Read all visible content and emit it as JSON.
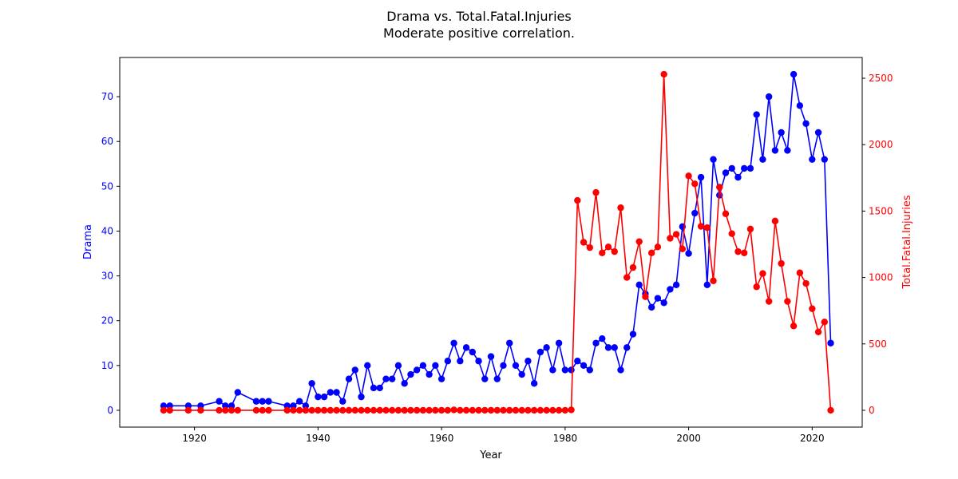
{
  "chart_data": {
    "type": "line",
    "title": "Drama vs. Total.Fatal.Injuries",
    "subtitle": "Moderate positive correlation.",
    "xlabel": "Year",
    "ylabel_left": "Drama",
    "ylabel_right": "Total.Fatal.Injuries",
    "xlim": [
      1907.9,
      2028.1
    ],
    "ylim_left": [
      -3.75,
      78.75
    ],
    "ylim_right": [
      -126.5,
      2656.5
    ],
    "xticks": [
      1920,
      1940,
      1960,
      1980,
      2000,
      2020
    ],
    "yticks_left": [
      0,
      10,
      20,
      30,
      40,
      50,
      60,
      70
    ],
    "yticks_right": [
      0,
      500,
      1000,
      1500,
      2000,
      2500
    ],
    "grid": false,
    "colors": {
      "left": "#0000ff",
      "right": "#ff0000",
      "axis": "#000000"
    },
    "series": [
      {
        "axis": "left",
        "color": "#0000ff",
        "x": [
          1915,
          1916,
          1919,
          1921,
          1924,
          1925,
          1926,
          1927,
          1930,
          1931,
          1932,
          1935,
          1936,
          1937,
          1938,
          1939,
          1940,
          1941,
          1942,
          1943,
          1944,
          1945,
          1946,
          1947,
          1948,
          1949,
          1950,
          1951,
          1952,
          1953,
          1954,
          1955,
          1956,
          1957,
          1958,
          1959,
          1960,
          1961,
          1962,
          1963,
          1964,
          1965,
          1966,
          1967,
          1968,
          1969,
          1970,
          1971,
          1972,
          1973,
          1974,
          1975,
          1976,
          1977,
          1978,
          1979,
          1980,
          1981,
          1982,
          1983,
          1984,
          1985,
          1986,
          1987,
          1988,
          1989,
          1990,
          1991,
          1992,
          1993,
          1994,
          1995,
          1996,
          1997,
          1998,
          1999,
          2000,
          2001,
          2002,
          2003,
          2004,
          2005,
          2006,
          2007,
          2008,
          2009,
          2010,
          2011,
          2012,
          2013,
          2014,
          2015,
          2016,
          2017,
          2018,
          2019,
          2020,
          2021,
          2022,
          2023
        ],
        "y": [
          1,
          1,
          1,
          1,
          2,
          1,
          1,
          4,
          2,
          2,
          2,
          1,
          1,
          2,
          1,
          6,
          3,
          3,
          4,
          4,
          2,
          7,
          9,
          3,
          10,
          5,
          5,
          7,
          7,
          10,
          6,
          8,
          9,
          10,
          8,
          10,
          7,
          11,
          15,
          11,
          14,
          13,
          11,
          7,
          12,
          7,
          10,
          15,
          10,
          8,
          11,
          6,
          13,
          14,
          9,
          15,
          9,
          9,
          11,
          10,
          9,
          15,
          16,
          14,
          14,
          9,
          14,
          17,
          28,
          26,
          23,
          25,
          24,
          27,
          28,
          41,
          35,
          44,
          52,
          28,
          56,
          48,
          53,
          54,
          52,
          54,
          54,
          66,
          56,
          70,
          58,
          62,
          58,
          75,
          68,
          64,
          56,
          62,
          56,
          15
        ]
      },
      {
        "axis": "right",
        "color": "#ff0000",
        "x": [
          1915,
          1916,
          1919,
          1921,
          1924,
          1925,
          1926,
          1927,
          1930,
          1931,
          1932,
          1935,
          1936,
          1937,
          1938,
          1939,
          1940,
          1941,
          1942,
          1943,
          1944,
          1945,
          1946,
          1947,
          1948,
          1949,
          1950,
          1951,
          1952,
          1953,
          1954,
          1955,
          1956,
          1957,
          1958,
          1959,
          1960,
          1961,
          1962,
          1963,
          1964,
          1965,
          1966,
          1967,
          1968,
          1969,
          1970,
          1971,
          1972,
          1973,
          1974,
          1975,
          1976,
          1977,
          1978,
          1979,
          1980,
          1981,
          1982,
          1983,
          1984,
          1985,
          1986,
          1987,
          1988,
          1989,
          1990,
          1991,
          1992,
          1993,
          1994,
          1995,
          1996,
          1997,
          1998,
          1999,
          2000,
          2001,
          2002,
          2003,
          2004,
          2005,
          2006,
          2007,
          2008,
          2009,
          2010,
          2011,
          2012,
          2013,
          2014,
          2015,
          2016,
          2017,
          2018,
          2019,
          2020,
          2021,
          2022,
          2023
        ],
        "y": [
          0,
          0,
          0,
          0,
          0,
          0,
          0,
          0,
          0,
          0,
          0,
          0,
          0,
          0,
          0,
          0,
          0,
          0,
          0,
          0,
          0,
          0,
          0,
          0,
          0,
          0,
          0,
          0,
          0,
          0,
          0,
          0,
          0,
          0,
          0,
          0,
          0,
          0,
          3,
          0,
          0,
          0,
          0,
          0,
          0,
          0,
          0,
          0,
          0,
          0,
          0,
          0,
          0,
          0,
          0,
          0,
          0,
          3,
          1580,
          1265,
          1225,
          1640,
          1185,
          1230,
          1195,
          1525,
          1000,
          1075,
          1270,
          855,
          1185,
          1230,
          2530,
          1295,
          1325,
          1215,
          1765,
          1705,
          1385,
          1375,
          975,
          1680,
          1480,
          1330,
          1195,
          1185,
          1365,
          930,
          1030,
          820,
          1425,
          1105,
          820,
          635,
          1035,
          955,
          765,
          590,
          665,
          0
        ]
      }
    ]
  }
}
